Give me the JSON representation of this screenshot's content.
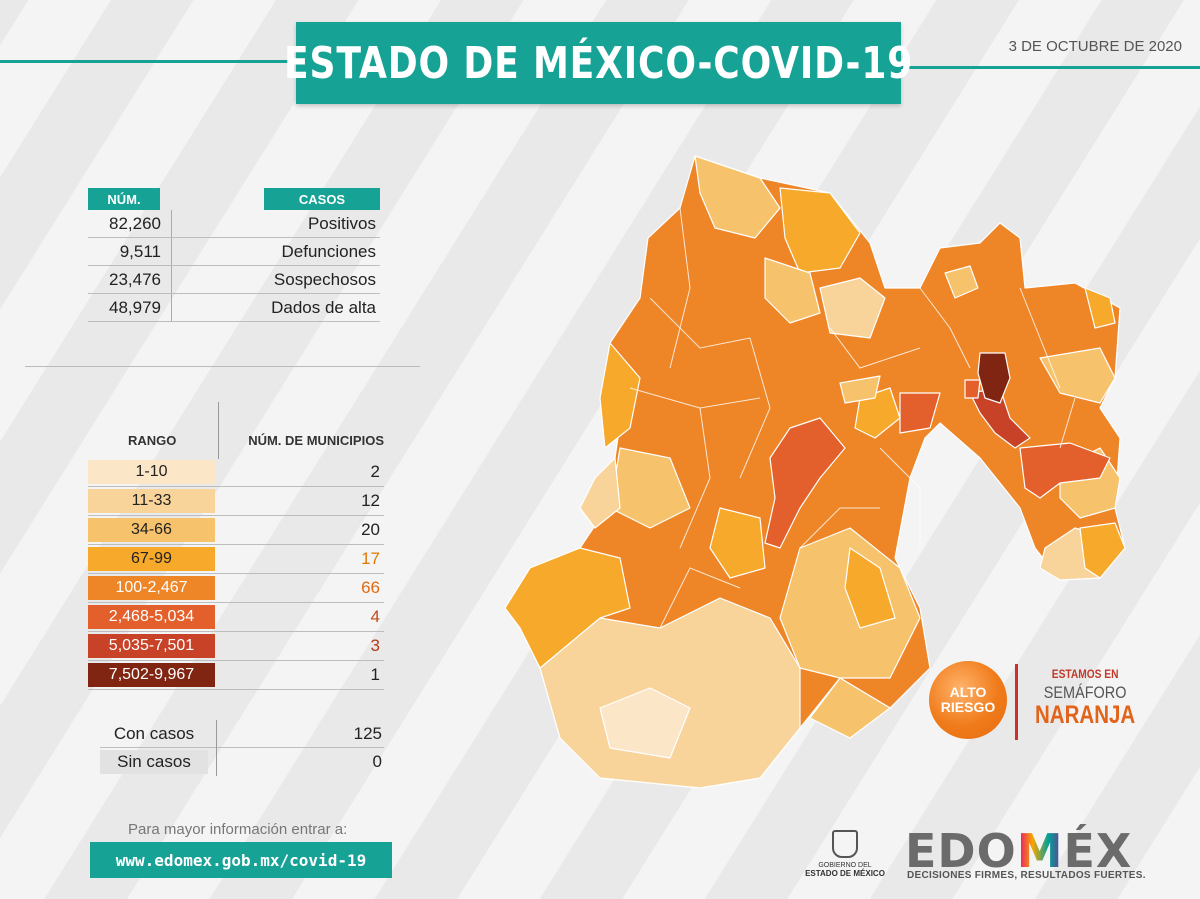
{
  "header": {
    "title": "ESTADO DE MÉXICO-COVID-19",
    "date": "3 DE OCTUBRE DE 2020"
  },
  "stats": {
    "col_num": "NÚM.",
    "col_cases": "CASOS",
    "rows": [
      {
        "value": "82,260",
        "label": "Positivos"
      },
      {
        "value": "9,511",
        "label": "Defunciones"
      },
      {
        "value": "23,476",
        "label": "Sospechosos"
      },
      {
        "value": "48,979",
        "label": "Dados de alta"
      }
    ]
  },
  "legend": {
    "col_range": "RANGO",
    "col_count": "NÚM. DE MUNICIPIOS",
    "rows": [
      {
        "range": "1-10",
        "count": "2",
        "color": "#fbe6c8",
        "text_color": "#222",
        "count_color": "#222"
      },
      {
        "range": "11-33",
        "count": "12",
        "color": "#f8d49a",
        "text_color": "#222",
        "count_color": "#222"
      },
      {
        "range": "34-66",
        "count": "20",
        "color": "#f7c26c",
        "text_color": "#222",
        "count_color": "#222"
      },
      {
        "range": "67-99",
        "count": "17",
        "color": "#f6a92a",
        "text_color": "#222",
        "count_color": "#e07b00"
      },
      {
        "range": "100-2,467",
        "count": "66",
        "color": "#ee8526",
        "text_color": "#fff",
        "count_color": "#e06a10"
      },
      {
        "range": "2,468-5,034",
        "count": "4",
        "color": "#e35f2b",
        "text_color": "#fff",
        "count_color": "#c24a1a"
      },
      {
        "range": "5,035-7,501",
        "count": "3",
        "color": "#c84227",
        "text_color": "#fff",
        "count_color": "#b23a1c"
      },
      {
        "range": "7,502-9,967",
        "count": "1",
        "color": "#7f2512",
        "text_color": "#fff",
        "count_color": "#222"
      }
    ]
  },
  "cases": {
    "with_label": "Con casos",
    "with_value": "125",
    "without_label": "Sin casos",
    "without_value": "0"
  },
  "footer": {
    "info_text": "Para mayor información entrar a:",
    "url": "www.edomex.gob.mx/covid-19"
  },
  "badge": {
    "alto_line1": "ALTO",
    "alto_line2": "RIESGO",
    "estamos": "ESTAMOS EN",
    "semaforo": "SEMÁFORO",
    "naranja": "NARANJA"
  },
  "logos": {
    "gob_line1": "GOBIERNO DEL",
    "gob_line2": "ESTADO DE MÉXICO",
    "edomex_prefix": "EDO",
    "edomex_m": "M",
    "edomex_suffix": "ÉX",
    "edomex_tagline": "DECISIONES FIRMES, RESULTADOS FUERTES."
  },
  "colors": {
    "teal": "#17a296",
    "map_levels": [
      "#fbe6c8",
      "#f8d49a",
      "#f7c26c",
      "#f6a92a",
      "#ee8526",
      "#e35f2b",
      "#c84227",
      "#7f2512"
    ]
  }
}
